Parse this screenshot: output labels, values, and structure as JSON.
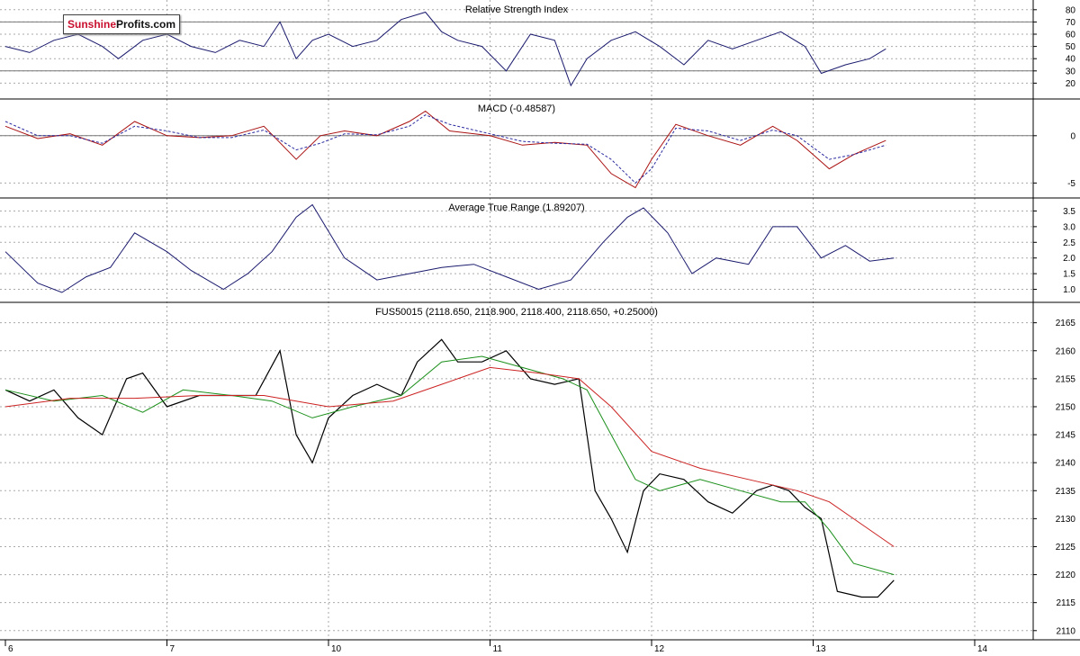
{
  "logo": {
    "part1": "Sunshine",
    "part2": "Profits.com"
  },
  "x_axis": {
    "day_labels": [
      "6",
      "7",
      "10",
      "11",
      "12",
      "13",
      "14"
    ],
    "day_positions": [
      0,
      1,
      2,
      3,
      4,
      5,
      6
    ]
  },
  "colors": {
    "price": "#000000",
    "ma_short": "#1a8f1a",
    "ma_long": "#cc2222",
    "indicator": "#1a1a6e",
    "macd": "#aa1111",
    "signal": "#2a2aa0",
    "grid": "#aaaaaa"
  },
  "chart_data": [
    {
      "type": "line",
      "title": "Relative Strength Index",
      "ylim": [
        10,
        85
      ],
      "yticks": [
        20,
        30,
        40,
        50,
        60,
        70,
        80
      ],
      "reference_lines": [
        30,
        70
      ],
      "series": [
        {
          "x": [
            0,
            0.15,
            0.3,
            0.45,
            0.6,
            0.7,
            0.85,
            1.0,
            1.15,
            1.3,
            1.45,
            1.6,
            1.7,
            1.8,
            1.9,
            2.0,
            2.15,
            2.3,
            2.45,
            2.6,
            2.7,
            2.8,
            2.95,
            3.1,
            3.25,
            3.4,
            3.5,
            3.6,
            3.75,
            3.9,
            4.05,
            4.2,
            4.35,
            4.5,
            4.65,
            4.8,
            4.95,
            5.05,
            5.2,
            5.35,
            5.45
          ],
          "y": [
            50,
            45,
            55,
            60,
            50,
            40,
            55,
            60,
            50,
            45,
            55,
            50,
            70,
            40,
            55,
            60,
            50,
            55,
            72,
            78,
            62,
            55,
            50,
            30,
            60,
            55,
            18,
            40,
            55,
            62,
            50,
            35,
            55,
            48,
            55,
            62,
            50,
            28,
            35,
            40,
            48
          ]
        }
      ]
    },
    {
      "type": "line",
      "title": "MACD (-0.48587)",
      "ylim": [
        -6.2,
        3.5
      ],
      "yticks": [
        0,
        -5
      ],
      "reference_lines": [
        0
      ],
      "series": [
        {
          "x": [
            0,
            0.2,
            0.4,
            0.6,
            0.8,
            1.0,
            1.2,
            1.4,
            1.6,
            1.8,
            1.95,
            2.1,
            2.3,
            2.5,
            2.6,
            2.75,
            3.0,
            3.2,
            3.4,
            3.6,
            3.75,
            3.9,
            4.0,
            4.15,
            4.35,
            4.55,
            4.75,
            4.9,
            5.1,
            5.25,
            5.45
          ],
          "y": [
            1.0,
            -0.3,
            0.2,
            -1.0,
            1.5,
            0.0,
            -0.2,
            0.0,
            1.0,
            -2.5,
            0.0,
            0.5,
            0.0,
            1.5,
            2.6,
            0.5,
            0.0,
            -1.0,
            -0.7,
            -1.0,
            -4.0,
            -5.5,
            -2.5,
            1.2,
            0.0,
            -1.0,
            1.0,
            -0.5,
            -3.5,
            -2.0,
            -0.5
          ]
        },
        {
          "x": [
            0,
            0.2,
            0.4,
            0.6,
            0.8,
            1.0,
            1.2,
            1.4,
            1.6,
            1.8,
            1.95,
            2.1,
            2.3,
            2.5,
            2.6,
            2.75,
            3.0,
            3.2,
            3.4,
            3.6,
            3.75,
            3.9,
            4.0,
            4.15,
            4.35,
            4.55,
            4.75,
            4.9,
            5.1,
            5.25,
            5.45
          ],
          "y": [
            1.5,
            0.0,
            0.0,
            -0.8,
            1.0,
            0.5,
            -0.2,
            -0.2,
            0.6,
            -1.5,
            -0.8,
            0.2,
            0.1,
            1.0,
            2.2,
            1.2,
            0.2,
            -0.6,
            -0.8,
            -0.9,
            -2.5,
            -5.0,
            -3.5,
            0.8,
            0.5,
            -0.5,
            0.6,
            0.0,
            -2.5,
            -2.0,
            -1.0
          ]
        }
      ]
    },
    {
      "type": "line",
      "title": "Average True Range (1.89207)",
      "ylim": [
        0.7,
        3.8
      ],
      "yticks": [
        1.0,
        1.5,
        2.0,
        2.5,
        3.0,
        3.5
      ],
      "series": [
        {
          "x": [
            0,
            0.2,
            0.35,
            0.5,
            0.65,
            0.8,
            1.0,
            1.15,
            1.35,
            1.5,
            1.65,
            1.8,
            1.9,
            2.1,
            2.3,
            2.5,
            2.7,
            2.9,
            3.1,
            3.3,
            3.5,
            3.7,
            3.85,
            3.95,
            4.1,
            4.25,
            4.4,
            4.6,
            4.75,
            4.9,
            5.05,
            5.2,
            5.35,
            5.5
          ],
          "y": [
            2.2,
            1.2,
            0.9,
            1.4,
            1.7,
            2.8,
            2.2,
            1.6,
            1.0,
            1.5,
            2.2,
            3.3,
            3.7,
            2.0,
            1.3,
            1.5,
            1.7,
            1.8,
            1.4,
            1.0,
            1.3,
            2.5,
            3.3,
            3.6,
            2.8,
            1.5,
            2.0,
            1.8,
            3.0,
            3.0,
            2.0,
            2.4,
            1.9,
            2.0
          ]
        }
      ]
    },
    {
      "type": "line",
      "title": "FUS50015 (2118.650, 2118.900, 2118.400, 2118.650, +0.25000)",
      "ylim": [
        2109,
        2168
      ],
      "yticks": [
        2110,
        2115,
        2120,
        2125,
        2130,
        2135,
        2140,
        2145,
        2150,
        2155,
        2160,
        2165
      ],
      "series": [
        {
          "x": [
            0,
            0.15,
            0.3,
            0.45,
            0.6,
            0.75,
            0.85,
            1.0,
            1.2,
            1.4,
            1.55,
            1.7,
            1.8,
            1.9,
            2.0,
            2.15,
            2.3,
            2.45,
            2.55,
            2.7,
            2.8,
            2.95,
            3.1,
            3.25,
            3.4,
            3.55,
            3.65,
            3.75,
            3.85,
            3.95,
            4.05,
            4.2,
            4.35,
            4.5,
            4.65,
            4.75,
            4.85,
            4.95,
            5.05,
            5.15,
            5.3,
            5.4,
            5.5
          ],
          "y": [
            2153,
            2151,
            2153,
            2148,
            2145,
            2155,
            2156,
            2150,
            2152,
            2152,
            2152,
            2160,
            2145,
            2140,
            2148,
            2152,
            2154,
            2152,
            2158,
            2162,
            2158,
            2158,
            2160,
            2155,
            2154,
            2155,
            2135,
            2130,
            2124,
            2135,
            2138,
            2137,
            2133,
            2131,
            2135,
            2136,
            2135,
            2132,
            2130,
            2117,
            2116,
            2116,
            2119
          ]
        },
        {
          "x": [
            0,
            0.3,
            0.6,
            0.85,
            1.1,
            1.4,
            1.65,
            1.9,
            2.15,
            2.45,
            2.7,
            2.95,
            3.2,
            3.45,
            3.6,
            3.75,
            3.9,
            4.05,
            4.3,
            4.55,
            4.8,
            4.95,
            5.1,
            5.25,
            5.5
          ],
          "y": [
            2153,
            2151,
            2152,
            2149,
            2153,
            2152,
            2151,
            2148,
            2150,
            2152,
            2158,
            2159,
            2157,
            2155,
            2153,
            2145,
            2137,
            2135,
            2137,
            2135,
            2133,
            2133,
            2128,
            2122,
            2120
          ]
        },
        {
          "x": [
            0,
            0.4,
            0.8,
            1.2,
            1.6,
            2.0,
            2.4,
            2.7,
            3.0,
            3.3,
            3.55,
            3.75,
            4.0,
            4.3,
            4.6,
            4.9,
            5.1,
            5.3,
            5.5
          ],
          "y": [
            2150,
            2151.5,
            2151.5,
            2152,
            2152,
            2150,
            2151,
            2154,
            2157,
            2156,
            2155,
            2150,
            2142,
            2139,
            2137,
            2135,
            2133,
            2129,
            2125
          ]
        }
      ]
    }
  ]
}
